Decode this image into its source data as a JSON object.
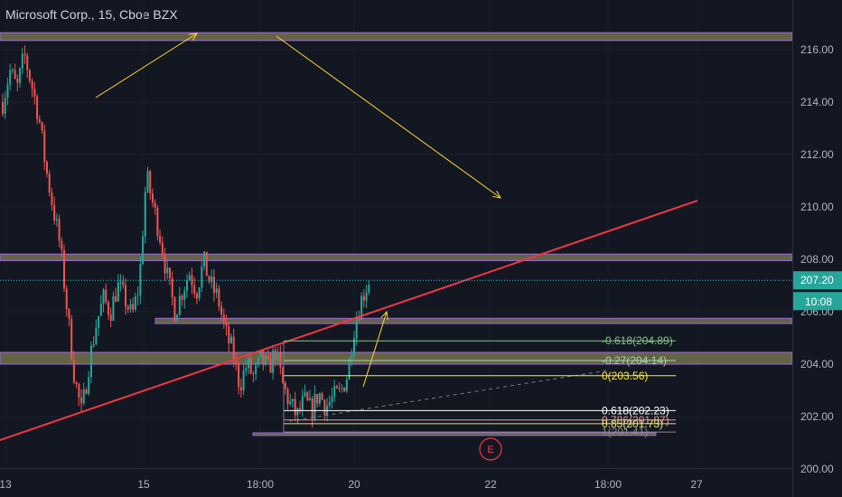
{
  "header": {
    "symbol_title": "Microsoft Corp., 15, Cboe BZX"
  },
  "colors": {
    "background": "#131722",
    "up": "#26a69a",
    "down": "#ef5350",
    "trendline": "#f23645",
    "arrows": "#fdd835",
    "zone_fill": "#807d52",
    "zone_border": "#9c6ade",
    "price_line": "#26c6da"
  },
  "chart_data": {
    "type": "candlestick",
    "y_axis": {
      "ticks": [
        "200.00",
        "202.00",
        "204.00",
        "206.00",
        "208.00",
        "210.00",
        "212.00",
        "214.00",
        "216.00"
      ],
      "ylim": [
        199.8,
        217.2
      ]
    },
    "x_axis": {
      "ticks": [
        "13",
        "15",
        "18:00",
        "20",
        "22",
        "18:00",
        "27"
      ]
    },
    "last_price": {
      "value": "207.20",
      "time": "10:08"
    },
    "ohlc_path": [
      214.0,
      215.2,
      214.5,
      215.8,
      214.7,
      213.5,
      211.5,
      210.0,
      208.5,
      206.0,
      203.5,
      202.1,
      204.0,
      205.5,
      206.5,
      206.0,
      207.0,
      206.5,
      205.8,
      207.0,
      211.2,
      210.0,
      208.8,
      207.2,
      206.0,
      206.8,
      207.5,
      206.8,
      207.9,
      207.0,
      206.5,
      205.2,
      204.5,
      203.2,
      204.0,
      203.5,
      204.2,
      203.8,
      204.5,
      203.2,
      202.5,
      202.0,
      202.6,
      202.2,
      202.9,
      202.4,
      202.7,
      202.9,
      203.6,
      205.5,
      206.5,
      207.2
    ],
    "series": [
      {
        "name": "Fibonacci",
        "levels": [
          {
            "label": "-0.618(204.89)",
            "value": 204.89,
            "color": "#81c784"
          },
          {
            "label": "-0.27(204.14)",
            "value": 204.14,
            "color": "#a5d6a7"
          },
          {
            "label": "0(203.56)",
            "value": 203.56,
            "color": "#ffeb3b"
          },
          {
            "label": "0.618(202.23)",
            "value": 202.23,
            "color": "#ffffff"
          },
          {
            "label": "0.786(201.87)",
            "value": 201.87,
            "color": "#ef9a9a"
          },
          {
            "label": "0.85(201.73)",
            "value": 201.73,
            "color": "#dce775"
          },
          {
            "label": "1(201.41)",
            "value": 201.41,
            "color": "#8a8a8a"
          }
        ]
      }
    ],
    "zones": [
      {
        "low": 216.35,
        "high": 216.65
      },
      {
        "low": 207.95,
        "high": 208.2
      },
      {
        "low": 205.55,
        "high": 205.75
      },
      {
        "low": 204.0,
        "high": 204.45
      },
      {
        "low": 201.28,
        "high": 201.38
      }
    ],
    "event_marker": "E"
  }
}
